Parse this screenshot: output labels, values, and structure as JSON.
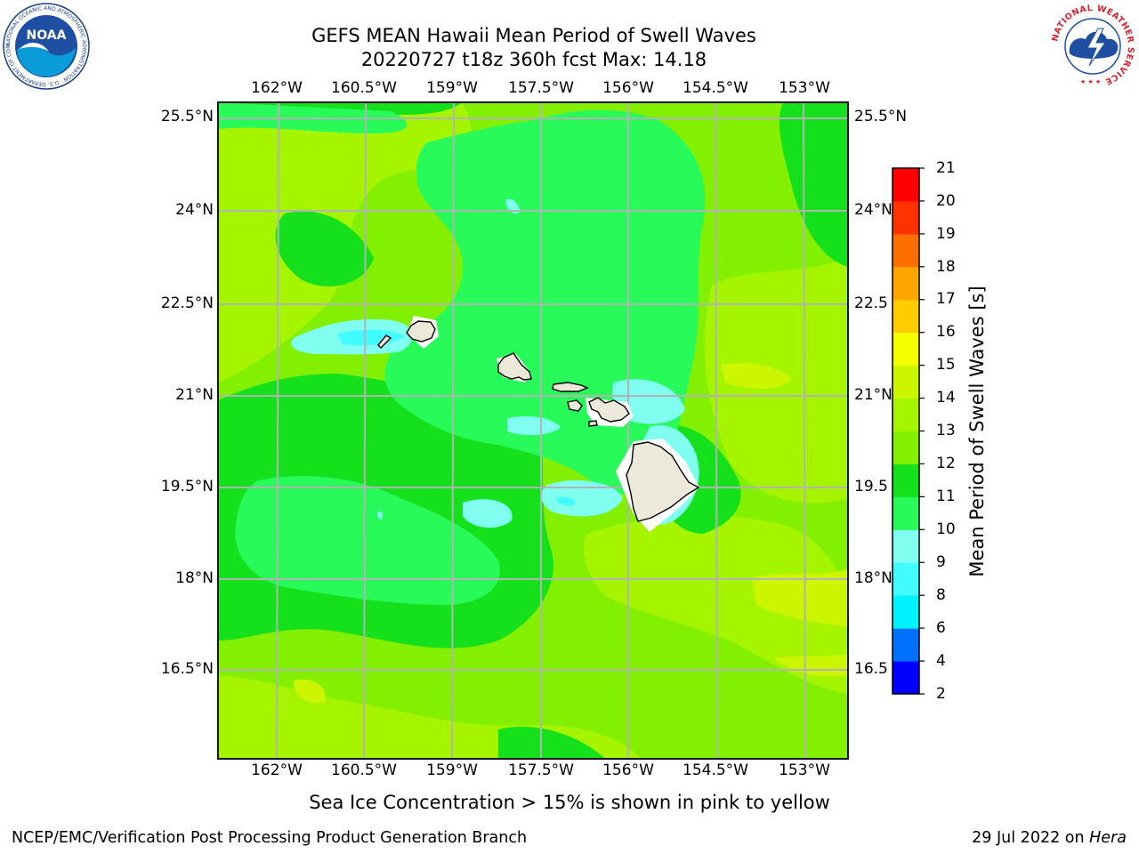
{
  "header": {
    "title_line1": "GEFS MEAN Hawaii Mean Period of Swell Waves",
    "title_line2": "20220727 t18z 360h fcst   Max: 14.18"
  },
  "map": {
    "lon_labels": [
      "162°W",
      "160.5°W",
      "159°W",
      "157.5°W",
      "156°W",
      "154.5°W",
      "153°W"
    ],
    "lat_labels": [
      "25.5°N",
      "24°N",
      "22.5°N",
      "21°N",
      "19.5°N",
      "18°N",
      "16.5°N"
    ],
    "lat_labels_right": [
      "25.5°N",
      "24°N",
      "22.5",
      "21°N",
      "19.5",
      "18°N",
      "16.5"
    ],
    "field_max": 14.18,
    "islands": [
      "Niihau",
      "Kauai",
      "Oahu",
      "Molokai",
      "Lanai",
      "Kahoolawe",
      "Maui",
      "Hawaii"
    ]
  },
  "colorbar": {
    "label": "Mean Period of Swell Waves [s]",
    "levels": [
      2,
      4,
      6,
      8,
      9,
      10,
      11,
      12,
      13,
      14,
      15,
      16,
      17,
      18,
      19,
      20,
      21
    ],
    "tick_labels": [
      "2",
      "4",
      "6",
      "8",
      "9",
      "10",
      "11",
      "12",
      "13",
      "14",
      "15",
      "16",
      "17",
      "18",
      "19",
      "20",
      "21"
    ],
    "colors": [
      "#0000ff",
      "#0070ff",
      "#00f2ff",
      "#40fcff",
      "#80fff0",
      "#28fa5a",
      "#14e01c",
      "#82f000",
      "#a6f500",
      "#ccf500",
      "#f5ff00",
      "#ffcc00",
      "#ffa500",
      "#ff6e00",
      "#ff3200",
      "#ff0000"
    ]
  },
  "note": "Sea Ice Concentration > 15% is shown in pink to yellow",
  "footer": {
    "left": "NCEP/EMC/Verification Post Processing Product Generation Branch",
    "right_date": "29 Jul 2022 on ",
    "right_host": "Hera"
  },
  "logos": {
    "noaa_text": "NOAA",
    "noaa_ring": "NATIONAL OCEANIC AND ATMOSPHERIC ADMINISTRATION · U.S. DEPARTMENT OF COMMERCE",
    "nws_ring": "NATIONAL WEATHER SERVICE"
  }
}
